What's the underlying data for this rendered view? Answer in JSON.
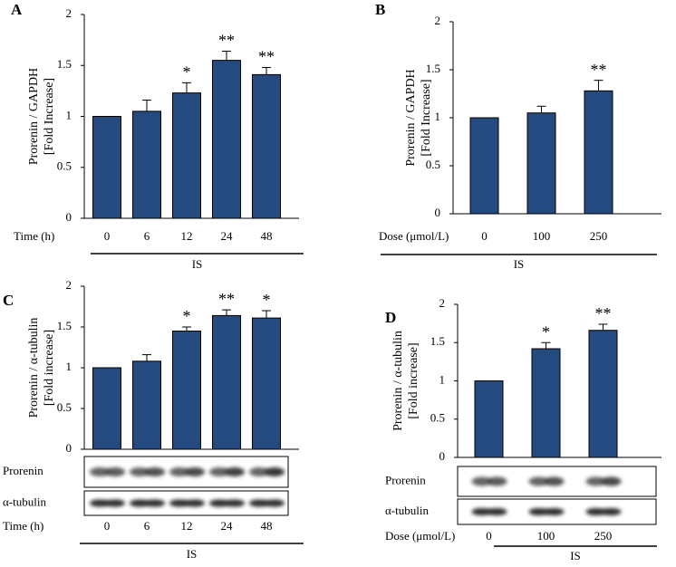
{
  "chart_data": [
    {
      "type": "bar",
      "panel": "A",
      "ylabel": [
        "Prorenin / GAPDH",
        "[Fold Increase]"
      ],
      "xlabel": "Time (h)",
      "group": "IS",
      "categories": [
        "0",
        "6",
        "12",
        "24",
        "48"
      ],
      "values": [
        1,
        1.05,
        1.23,
        1.55,
        1.41
      ],
      "errors": [
        0,
        0.11,
        0.1,
        0.09,
        0.07
      ],
      "annotations": [
        null,
        null,
        "*",
        "**",
        "**"
      ],
      "color": "#244a7f",
      "ylim": [
        0,
        2
      ],
      "yticks": [
        0,
        0.5,
        1,
        1.5,
        2
      ]
    },
    {
      "type": "bar",
      "panel": "B",
      "ylabel": [
        "Prorenin / GAPDH",
        "[Fold Increase]"
      ],
      "xlabel": "Dose (μmol/L)",
      "group": "IS",
      "categories": [
        "0",
        "100",
        "250"
      ],
      "values": [
        1,
        1.05,
        1.28
      ],
      "errors": [
        0,
        0.07,
        0.11
      ],
      "annotations": [
        null,
        null,
        "**"
      ],
      "color": "#244a7f",
      "ylim": [
        0,
        2
      ],
      "yticks": [
        0,
        0.5,
        1,
        1.5,
        2
      ]
    },
    {
      "type": "bar",
      "panel": "C",
      "ylabel": [
        "Prorenin / α-tubulin",
        "[Fold increase]"
      ],
      "xlabel": "Time (h)",
      "group": "IS",
      "categories": [
        "0",
        "6",
        "12",
        "24",
        "48"
      ],
      "values": [
        1,
        1.08,
        1.45,
        1.64,
        1.61
      ],
      "errors": [
        0,
        0.08,
        0.05,
        0.07,
        0.09
      ],
      "annotations": [
        null,
        null,
        "*",
        "**",
        "*"
      ],
      "blots": [
        "Prorenin",
        "α-tubulin"
      ],
      "color": "#244a7f",
      "ylim": [
        0,
        2
      ],
      "yticks": [
        0,
        0.5,
        1,
        1.5,
        2
      ]
    },
    {
      "type": "bar",
      "panel": "D",
      "ylabel": [
        "Prorenin / α-tubulin",
        "[Fold increase]"
      ],
      "xlabel": "Dose (μmol/L)",
      "group": "IS",
      "categories": [
        "0",
        "100",
        "250"
      ],
      "values": [
        1,
        1.42,
        1.66
      ],
      "errors": [
        0,
        0.08,
        0.08
      ],
      "annotations": [
        null,
        "*",
        "**"
      ],
      "blots": [
        "Prorenin",
        "α-tubulin"
      ],
      "color": "#244a7f",
      "ylim": [
        0,
        2
      ],
      "yticks": [
        0,
        0.5,
        1,
        1.5,
        2
      ]
    }
  ]
}
